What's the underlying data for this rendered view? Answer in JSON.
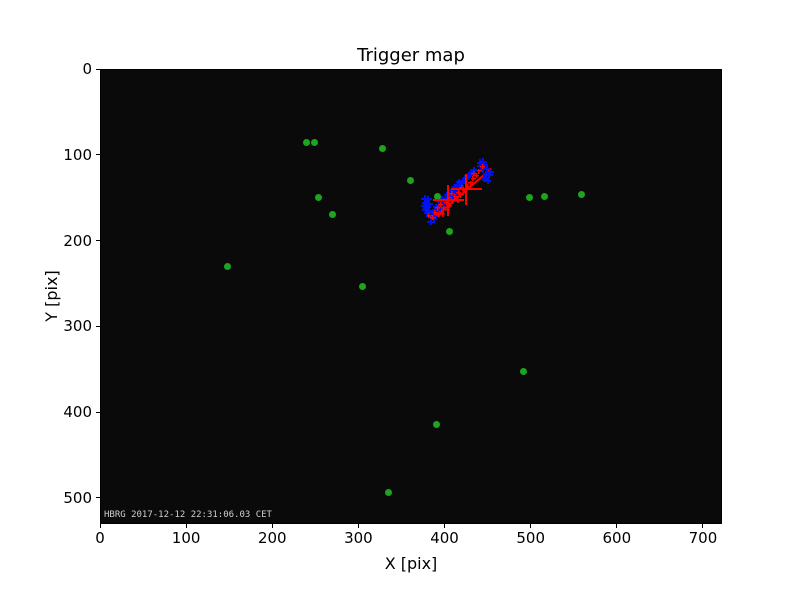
{
  "chart_data": {
    "type": "scatter",
    "title": "Trigger map",
    "xlabel": "X [pix]",
    "ylabel": "Y [pix]",
    "timestamp": "HBRG 2017-12-12 22:31:06.03 CET",
    "xlim": [
      0,
      722
    ],
    "ylim": [
      530,
      0
    ],
    "y_axis_inverted": true,
    "grid": false,
    "legend": "none",
    "xticks": [
      0,
      100,
      200,
      300,
      400,
      500,
      600,
      700
    ],
    "yticks": [
      0,
      100,
      200,
      300,
      400,
      500
    ],
    "colors": {
      "background": "#0a0a0a",
      "green_dots": "#1ea51e",
      "blue_hits": "#0012ee",
      "red_marks": "#ff0000",
      "text": "#000000",
      "timestamp_text": "#cfcfcf"
    },
    "series": [
      {
        "name": "green-dots",
        "marker": "circle",
        "points": [
          [
            239,
            84
          ],
          [
            248,
            85
          ],
          [
            327,
            91
          ],
          [
            359,
            129
          ],
          [
            252,
            149
          ],
          [
            269,
            169
          ],
          [
            147,
            229
          ],
          [
            304,
            253
          ],
          [
            391,
            148
          ],
          [
            405,
            188
          ],
          [
            498,
            149
          ],
          [
            515,
            148
          ],
          [
            558,
            145
          ],
          [
            491,
            352
          ],
          [
            389,
            413
          ],
          [
            334,
            493
          ]
        ]
      },
      {
        "name": "blue-hits",
        "marker": "plus",
        "points": [
          [
            376,
            150
          ],
          [
            380,
            151
          ],
          [
            377,
            155
          ],
          [
            381,
            156
          ],
          [
            375,
            159
          ],
          [
            379,
            160
          ],
          [
            377,
            163
          ],
          [
            381,
            164
          ],
          [
            379,
            167
          ],
          [
            383,
            177
          ],
          [
            386,
            174
          ],
          [
            384,
            171
          ],
          [
            387,
            169
          ],
          [
            385,
            166
          ],
          [
            389,
            167
          ],
          [
            388,
            163
          ],
          [
            391,
            164
          ],
          [
            390,
            160
          ],
          [
            393,
            161
          ],
          [
            392,
            157
          ],
          [
            395,
            158
          ],
          [
            394,
            154
          ],
          [
            397,
            155
          ],
          [
            396,
            151
          ],
          [
            399,
            152
          ],
          [
            398,
            157
          ],
          [
            401,
            153
          ],
          [
            400,
            149
          ],
          [
            403,
            150
          ],
          [
            402,
            146
          ],
          [
            405,
            147
          ],
          [
            404,
            152
          ],
          [
            407,
            148
          ],
          [
            406,
            143
          ],
          [
            409,
            144
          ],
          [
            408,
            140
          ],
          [
            411,
            141
          ],
          [
            410,
            146
          ],
          [
            413,
            142
          ],
          [
            412,
            137
          ],
          [
            415,
            138
          ],
          [
            414,
            134
          ],
          [
            417,
            135
          ],
          [
            416,
            131
          ],
          [
            419,
            132
          ],
          [
            421,
            129
          ],
          [
            423,
            127
          ],
          [
            425,
            125
          ],
          [
            427,
            123
          ],
          [
            429,
            121
          ],
          [
            431,
            119
          ],
          [
            433,
            117
          ],
          [
            440,
            108
          ],
          [
            444,
            107
          ],
          [
            441,
            112
          ],
          [
            445,
            111
          ],
          [
            448,
            115
          ],
          [
            444,
            116
          ],
          [
            447,
            122
          ],
          [
            451,
            123
          ],
          [
            445,
            127
          ],
          [
            449,
            129
          ],
          [
            452,
            119
          ]
        ]
      },
      {
        "name": "red-small-hits",
        "marker": "plus-small",
        "points": [
          [
            381,
            170
          ],
          [
            385,
            172
          ],
          [
            388,
            166
          ],
          [
            392,
            169
          ],
          [
            391,
            161
          ],
          [
            395,
            165
          ],
          [
            394,
            157
          ],
          [
            398,
            161
          ],
          [
            397,
            168
          ],
          [
            402,
            163
          ],
          [
            401,
            155
          ],
          [
            405,
            158
          ],
          [
            404,
            149
          ],
          [
            408,
            153
          ],
          [
            407,
            144
          ],
          [
            411,
            148
          ],
          [
            414,
            152
          ],
          [
            415,
            143
          ],
          [
            418,
            146
          ],
          [
            419,
            137
          ],
          [
            422,
            141
          ],
          [
            426,
            136
          ],
          [
            429,
            132
          ],
          [
            432,
            127
          ],
          [
            436,
            123
          ],
          [
            439,
            118
          ],
          [
            443,
            113
          ],
          [
            433,
            121
          ]
        ]
      },
      {
        "name": "red-big-crosses",
        "marker": "plus-large",
        "points": [
          [
            403,
            152
          ],
          [
            424,
            139
          ]
        ]
      }
    ],
    "track_line": {
      "name": "red-track-line",
      "from": [
        385,
        174
      ],
      "to": [
        453,
        115
      ]
    }
  }
}
